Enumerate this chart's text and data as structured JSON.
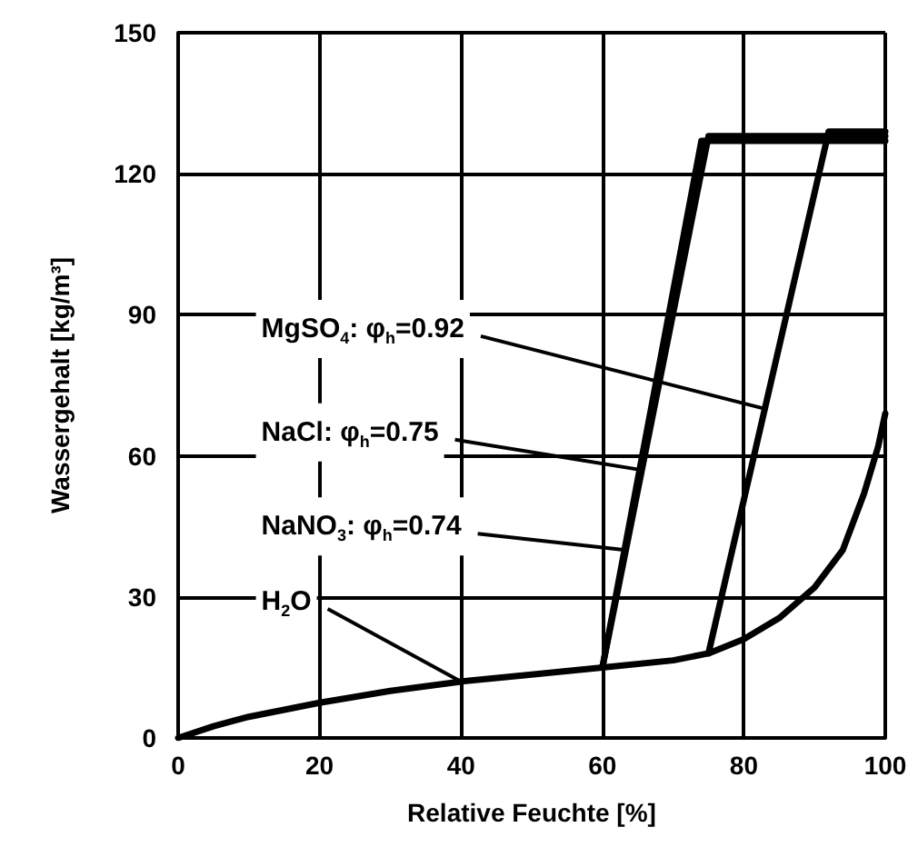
{
  "chart_data": {
    "type": "line",
    "xlabel": "Relative Feuchte [%]",
    "ylabel": "Wassergehalt [kg/m³]",
    "xlim": [
      0,
      100
    ],
    "xticks": [
      0,
      20,
      40,
      60,
      80,
      100
    ],
    "ylim": [
      0,
      150
    ],
    "yticks": [
      0,
      30,
      60,
      90,
      120,
      150
    ],
    "grid": true,
    "marker": "none",
    "line_style": "solid",
    "series": [
      {
        "color": "#000000",
        "x": [
          0,
          5,
          10,
          20,
          30,
          40,
          50,
          60,
          70,
          75,
          80,
          85,
          90,
          94,
          97,
          99,
          100
        ],
        "values": [
          0,
          2.5,
          4.5,
          7.5,
          10,
          12,
          13.5,
          15,
          16.5,
          18,
          21,
          25.5,
          32,
          40,
          52,
          62,
          69
        ]
      },
      {
        "color": "#000000",
        "x": [
          60,
          74,
          100
        ],
        "values": [
          15,
          127,
          127
        ]
      },
      {
        "color": "#000000",
        "x": [
          60,
          75,
          100
        ],
        "values": [
          15,
          128,
          128
        ]
      },
      {
        "color": "#000000",
        "x": [
          75,
          92,
          100
        ],
        "values": [
          18,
          129,
          129
        ]
      }
    ],
    "annotations": [
      {
        "text": "MgSO$_{4}$: φ$_{h}$=0.92",
        "x": 83,
        "y": 70
      },
      {
        "text": "NaCl: φ$_{h}$=0.75",
        "x": 65.5,
        "y": 57
      },
      {
        "text": "NaNO$_{3}$: φ$_{h}$=0.74",
        "x": 63,
        "y": 40
      },
      {
        "text": "H$_{2}$O",
        "x": 40,
        "y": 12
      }
    ]
  }
}
